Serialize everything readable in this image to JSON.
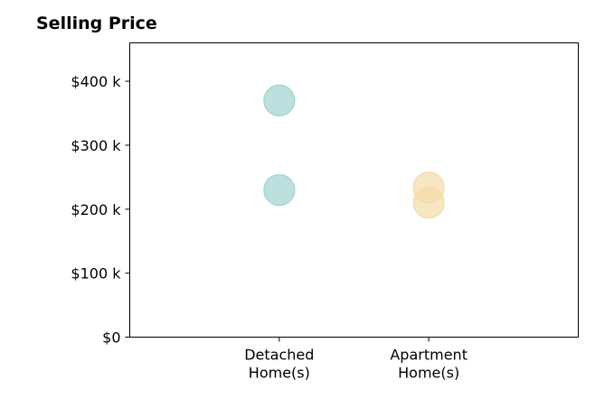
{
  "chart_data": {
    "type": "scatter",
    "title": "Selling Price",
    "xlabel": "",
    "ylabel": "",
    "categories": [
      [
        "Detached",
        "Home(s)"
      ],
      [
        "Apartment",
        "Home(s)"
      ]
    ],
    "ylim": [
      0,
      460000
    ],
    "yticks": [
      0,
      100000,
      200000,
      300000,
      400000
    ],
    "ytick_labels": [
      "$0",
      "$100 k",
      "$200 k",
      "$300 k",
      "$400 k"
    ],
    "grid": false,
    "series": [
      {
        "category": 0,
        "color": "#9fd3cf",
        "values": [
          370000,
          230000
        ]
      },
      {
        "category": 1,
        "color": "#f4dba8",
        "values": [
          234000,
          210000
        ]
      }
    ]
  }
}
